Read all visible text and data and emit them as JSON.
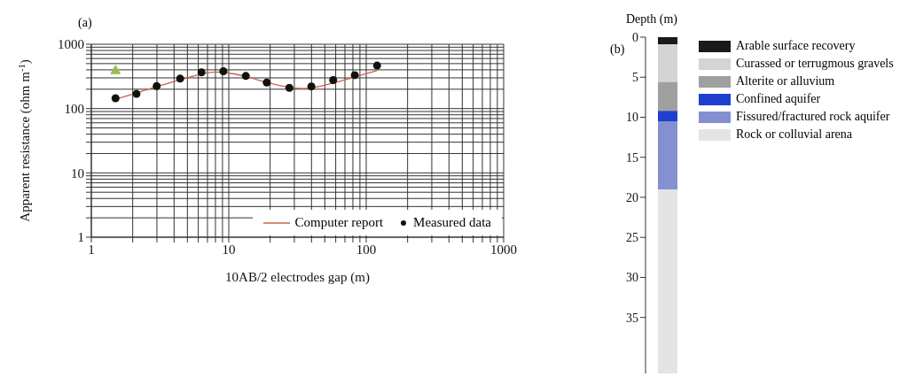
{
  "chart_data": [
    {
      "type": "scatter",
      "annotations": [
        "(a)"
      ],
      "xlabel": "10AB/2 electrodes gap (m)",
      "ylabel": "Apparent resistance (ohm m$^{-1}$)",
      "log": "xy",
      "xlim": [
        1,
        1000
      ],
      "ylim": [
        1,
        1000
      ],
      "xticks": [
        1,
        {
          "value": 2,
          "label": null
        },
        {
          "value": 3,
          "label": null
        },
        {
          "value": 4,
          "label": null
        },
        {
          "value": 5,
          "label": null
        },
        {
          "value": 6,
          "label": null
        },
        {
          "value": 7,
          "label": null
        },
        {
          "value": 8,
          "label": null
        },
        {
          "value": 9,
          "label": null
        },
        10,
        {
          "value": 20,
          "label": null
        },
        {
          "value": 30,
          "label": null
        },
        {
          "value": 40,
          "label": null
        },
        {
          "value": 50,
          "label": null
        },
        {
          "value": 60,
          "label": null
        },
        {
          "value": 70,
          "label": null
        },
        {
          "value": 80,
          "label": null
        },
        {
          "value": 90,
          "label": null
        },
        100,
        {
          "value": 200,
          "label": null
        },
        {
          "value": 300,
          "label": null
        },
        {
          "value": 400,
          "label": null
        },
        {
          "value": 500,
          "label": null
        },
        {
          "value": 600,
          "label": null
        },
        {
          "value": 700,
          "label": null
        },
        {
          "value": 800,
          "label": null
        },
        {
          "value": 900,
          "label": null
        },
        1000
      ],
      "yticks": [
        1,
        {
          "value": 2,
          "label": null
        },
        {
          "value": 3,
          "label": null
        },
        {
          "value": 4,
          "label": null
        },
        {
          "value": 5,
          "label": null
        },
        {
          "value": 6,
          "label": null
        },
        {
          "value": 7,
          "label": null
        },
        {
          "value": 8,
          "label": null
        },
        {
          "value": 9,
          "label": null
        },
        10,
        {
          "value": 20,
          "label": null
        },
        {
          "value": 30,
          "label": null
        },
        {
          "value": 40,
          "label": null
        },
        {
          "value": 50,
          "label": null
        },
        {
          "value": 60,
          "label": null
        },
        {
          "value": 70,
          "label": null
        },
        {
          "value": 80,
          "label": null
        },
        {
          "value": 90,
          "label": null
        },
        100,
        {
          "value": 200,
          "label": null
        },
        {
          "value": 300,
          "label": null
        },
        {
          "value": 400,
          "label": null
        },
        {
          "value": 500,
          "label": null
        },
        {
          "value": 600,
          "label": null
        },
        {
          "value": 700,
          "label": null
        },
        {
          "value": 800,
          "label": null
        },
        {
          "value": 900,
          "label": null
        },
        1000
      ],
      "grid": true,
      "legend": "bottom right",
      "series": [
        {
          "name": "Computer report",
          "type": "line",
          "color": "#d0604c",
          "marker": "none",
          "line_style": "solid",
          "x": [
            1.5,
            2.13,
            2.99,
            4.43,
            6.33,
            8,
            9.14,
            13.3,
            18.9,
            35,
            39.9,
            57.5,
            82.6,
            120
          ],
          "values": [
            140,
            175,
            220,
            280,
            345,
            370,
            365,
            315,
            255,
            205,
            210,
            250,
            310,
            390
          ]
        },
        {
          "name": "Measured data",
          "type": "scatter",
          "color": "#111111",
          "marker": "circle",
          "x": [
            1.5,
            2.13,
            2.99,
            4.43,
            6.33,
            9.14,
            13.3,
            18.9,
            27.6,
            39.9,
            57.5,
            82.6,
            120
          ],
          "values": [
            145,
            169,
            223,
            292,
            365,
            380,
            321,
            254,
            210,
            221,
            277,
            331,
            466
          ]
        },
        {
          "type": "scatter",
          "color": "#9aba50",
          "marker": "triangle",
          "x": [
            1.5
          ],
          "values": [
            385
          ]
        }
      ]
    },
    {
      "type": "bar",
      "stacked": true,
      "annotations": [
        "(b)"
      ],
      "ylabel": "Depth (m)",
      "categories": [
        null
      ],
      "ylim": [
        42,
        0
      ],
      "yticks": [
        0,
        5,
        10,
        15,
        20,
        25,
        30,
        35
      ],
      "tick_labels": "y",
      "legend": "right",
      "series": [
        {
          "name": "Arable surface recovery",
          "color": "#1a1a1a",
          "values": [
            0.9
          ]
        },
        {
          "name": "Curassed or terrugmous gravels",
          "color": "#d4d4d4",
          "values": [
            4.7
          ]
        },
        {
          "name": "Alterite or alluvium",
          "color": "#a0a0a0",
          "values": [
            3.6
          ]
        },
        {
          "name": "Confined aquifer",
          "color": "#1f3fd0",
          "values": [
            1.3
          ]
        },
        {
          "name": "Fissured/fractured rock aquifer",
          "color": "#8590d0",
          "values": [
            8.5
          ]
        },
        {
          "name": "Rock or colluvial arena",
          "color": "#e4e4e4",
          "values": [
            23
          ]
        }
      ]
    }
  ]
}
